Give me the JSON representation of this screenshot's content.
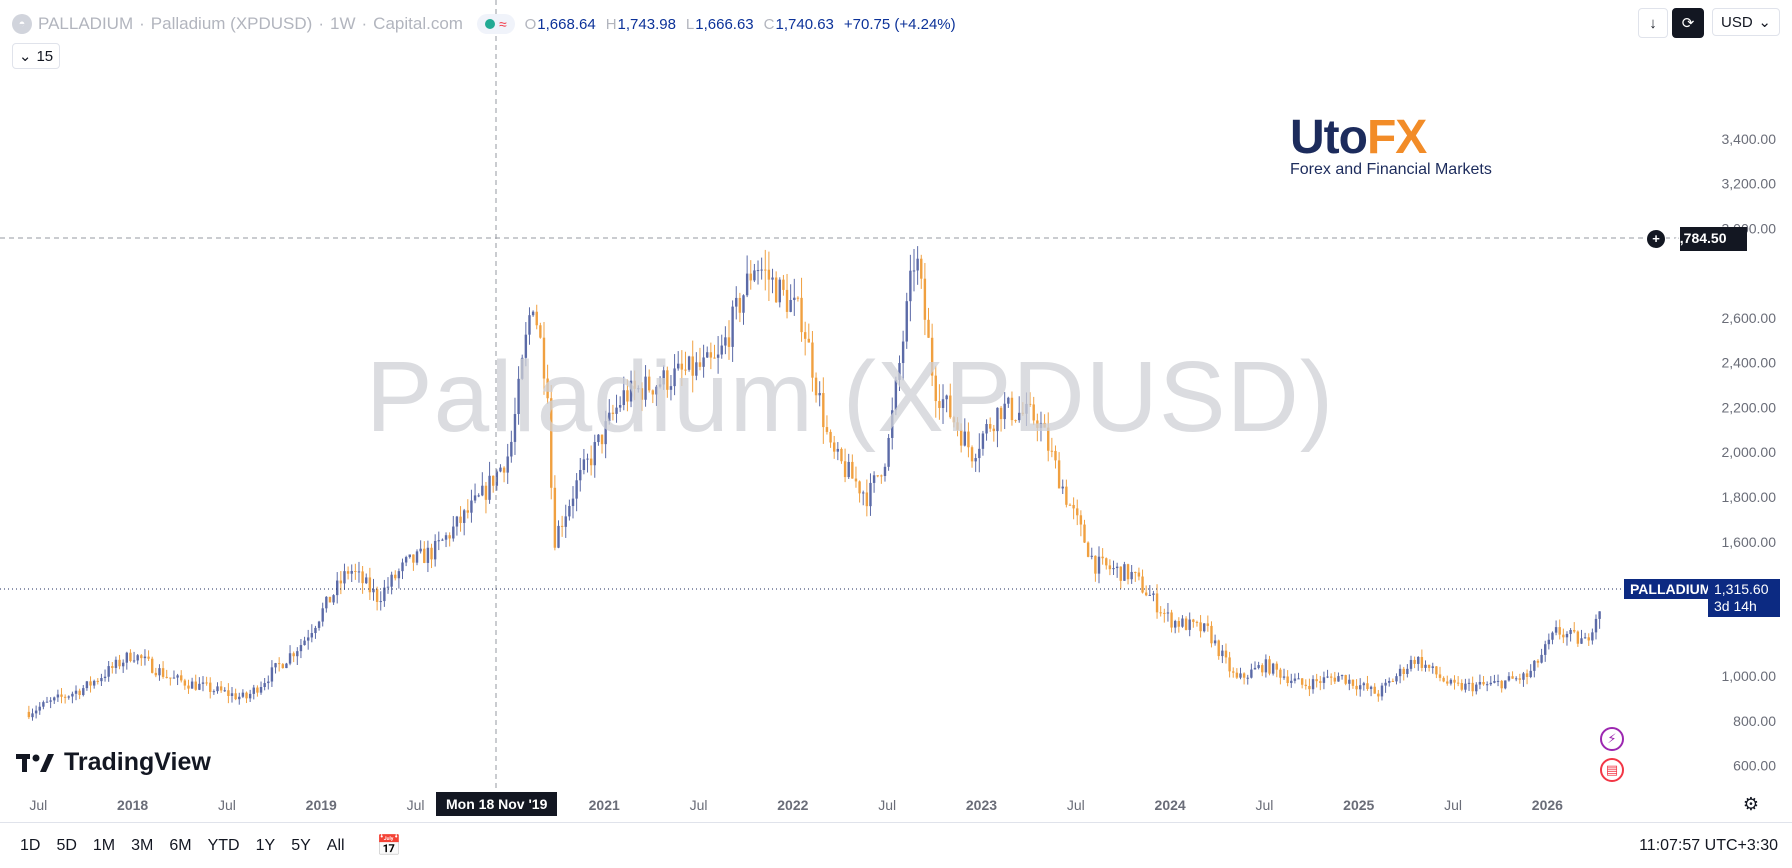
{
  "header": {
    "symbol": "PALLADIUM",
    "name": "Palladium (XPDUSD)",
    "interval": "1W",
    "source": "Capital.com",
    "ohlc": {
      "o": "1,668.64",
      "h": "1,743.98",
      "l": "1,666.63",
      "c": "1,740.63",
      "chg": "+70.75 (+4.24%)"
    },
    "indicator_count": "15"
  },
  "toolbar": {
    "currency": "USD"
  },
  "watermark": "Palladium (XPDUSD)",
  "brand": {
    "name_part1": "Uto",
    "name_part2": "FX",
    "tagline": "Forex and Financial Markets"
  },
  "tv_logo": "TradingView",
  "crosshair": {
    "date_label": "Mon 18 Nov '19",
    "price_label": "2,784.50"
  },
  "last_price": {
    "symbol_tag": "PALLADIUM",
    "price": "1,315.60",
    "countdown": "3d 14h"
  },
  "bottombar": {
    "ranges": [
      "1D",
      "5D",
      "1M",
      "3M",
      "6M",
      "YTD",
      "1Y",
      "5Y",
      "All"
    ],
    "clock": "11:07:57 UTC+3:30"
  },
  "colors": {
    "up": "#5b6aa7",
    "down": "#f0a040",
    "axis_text": "#6a6d78"
  },
  "chart_data": {
    "type": "candlestick",
    "interval": "1W",
    "x_labels": [
      "Jul",
      "2018",
      "Jul",
      "2019",
      "Jul",
      "2021",
      "Jul",
      "2022",
      "Jul",
      "2023",
      "Jul",
      "2024",
      "Jul",
      "2025",
      "Jul",
      "2026"
    ],
    "y_ticks": [
      "600.00",
      "800.00",
      "1,000.00",
      "1,400.00",
      "1,600.00",
      "1,800.00",
      "2,000.00",
      "2,200.00",
      "2,400.00",
      "2,600.00",
      "3,000.00",
      "3,200.00",
      "3,400.00"
    ],
    "ylim": [
      500,
      3600
    ],
    "series": [
      {
        "t": 2017.45,
        "p": 840
      },
      {
        "t": 2017.75,
        "p": 950
      },
      {
        "t": 2018.0,
        "p": 1100
      },
      {
        "t": 2018.2,
        "p": 990
      },
      {
        "t": 2018.6,
        "p": 900
      },
      {
        "t": 2018.9,
        "p": 1150
      },
      {
        "t": 2019.15,
        "p": 1480
      },
      {
        "t": 2019.3,
        "p": 1350
      },
      {
        "t": 2019.45,
        "p": 1500
      },
      {
        "t": 2019.6,
        "p": 1560
      },
      {
        "t": 2019.85,
        "p": 1800
      },
      {
        "t": 2020.0,
        "p": 2000
      },
      {
        "t": 2020.12,
        "p": 2700
      },
      {
        "t": 2020.2,
        "p": 2300
      },
      {
        "t": 2020.23,
        "p": 1600
      },
      {
        "t": 2020.35,
        "p": 1850
      },
      {
        "t": 2020.6,
        "p": 2250
      },
      {
        "t": 2020.9,
        "p": 2350
      },
      {
        "t": 2021.1,
        "p": 2400
      },
      {
        "t": 2021.3,
        "p": 2850
      },
      {
        "t": 2021.4,
        "p": 2750
      },
      {
        "t": 2021.55,
        "p": 2600
      },
      {
        "t": 2021.7,
        "p": 2000
      },
      {
        "t": 2021.9,
        "p": 1800
      },
      {
        "t": 2022.0,
        "p": 2000
      },
      {
        "t": 2022.15,
        "p": 2900
      },
      {
        "t": 2022.25,
        "p": 2300
      },
      {
        "t": 2022.45,
        "p": 2000
      },
      {
        "t": 2022.6,
        "p": 2200
      },
      {
        "t": 2022.8,
        "p": 2150
      },
      {
        "t": 2022.95,
        "p": 1800
      },
      {
        "t": 2023.1,
        "p": 1500
      },
      {
        "t": 2023.3,
        "p": 1450
      },
      {
        "t": 2023.5,
        "p": 1250
      },
      {
        "t": 2023.7,
        "p": 1200
      },
      {
        "t": 2023.85,
        "p": 980
      },
      {
        "t": 2024.0,
        "p": 1050
      },
      {
        "t": 2024.2,
        "p": 960
      },
      {
        "t": 2024.4,
        "p": 1000
      },
      {
        "t": 2024.6,
        "p": 920
      },
      {
        "t": 2024.8,
        "p": 1080
      },
      {
        "t": 2025.0,
        "p": 950
      },
      {
        "t": 2025.2,
        "p": 960
      },
      {
        "t": 2025.4,
        "p": 1000
      },
      {
        "t": 2025.55,
        "p": 1200
      },
      {
        "t": 2025.7,
        "p": 1150
      },
      {
        "t": 2025.78,
        "p": 1315.6
      }
    ]
  }
}
